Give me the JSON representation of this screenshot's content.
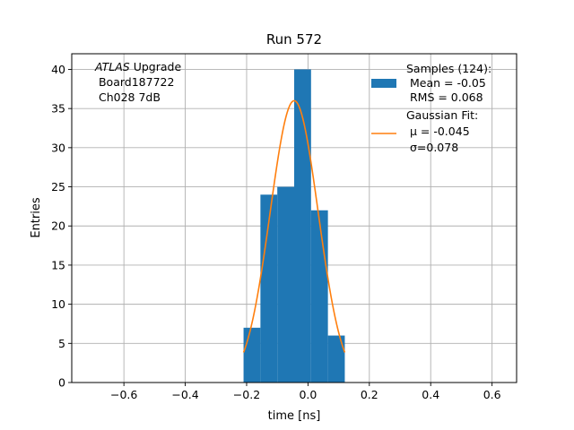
{
  "chart_data": {
    "type": "bar",
    "title": "Run 572",
    "xlabel": "time [ns]",
    "ylabel": "Entries",
    "xlim": [
      -0.77,
      0.68
    ],
    "ylim": [
      0,
      42
    ],
    "xticks": [
      -0.6,
      -0.4,
      -0.2,
      0.0,
      0.2,
      0.4,
      0.6
    ],
    "xtick_labels": [
      "−0.6",
      "−0.4",
      "−0.2",
      "0.0",
      "0.2",
      "0.4",
      "0.6"
    ],
    "yticks": [
      0,
      5,
      10,
      15,
      20,
      25,
      30,
      35,
      40
    ],
    "ytick_labels": [
      "0",
      "5",
      "10",
      "15",
      "20",
      "25",
      "30",
      "35",
      "40"
    ],
    "grid": true,
    "bin_edges": [
      -0.21,
      -0.155,
      -0.1,
      -0.045,
      0.01,
      0.065,
      0.12
    ],
    "series": [
      {
        "name": "Samples (124):",
        "kind": "histogram",
        "color": "#1f77b4",
        "values": [
          7,
          24,
          25,
          40,
          22,
          6
        ]
      },
      {
        "name": "Gaussian Fit:",
        "kind": "line",
        "color": "#ff7f0e",
        "amplitude": 36,
        "mu": -0.045,
        "sigma": 0.078,
        "x_range": [
          -0.21,
          0.12
        ]
      }
    ],
    "legend": {
      "placement": "top-right",
      "entries": [
        {
          "lines": [
            "Samples (124):",
            " Mean = -0.05",
            " RMS = 0.068"
          ]
        },
        {
          "lines": [
            "Gaussian Fit:",
            " μ = -0.045",
            " σ=0.078"
          ]
        }
      ]
    },
    "annotation": {
      "placement": "top-left",
      "italic_word": "ATLAS",
      "rest_first_line": " Upgrade",
      "lines": [
        " Board187722",
        " Ch028 7dB"
      ]
    }
  }
}
